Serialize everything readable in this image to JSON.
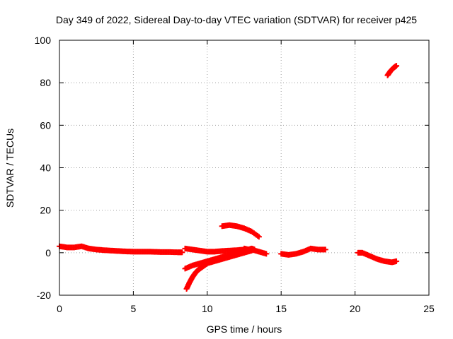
{
  "chart_data": {
    "type": "scatter",
    "title": "Day 349 of 2022, Sidereal Day-to-day VTEC variation (SDTVAR) for receiver p425",
    "xlabel": "GPS time / hours",
    "ylabel": "SDTVAR / TECUs",
    "xlim": [
      0,
      25
    ],
    "ylim": [
      -20,
      100
    ],
    "x_ticks": [
      "0",
      "5",
      "10",
      "15",
      "20",
      "25"
    ],
    "y_ticks": [
      "-20",
      "0",
      "20",
      "40",
      "60",
      "80",
      "100"
    ],
    "grid": true,
    "marker": "plus",
    "color": "#ff0000",
    "series": [
      {
        "name": "SDTVAR",
        "segments": [
          {
            "x": [
              0.0,
              0.5,
              1.0,
              1.5,
              2.0,
              2.5,
              3.0,
              3.5,
              4.0,
              4.5,
              5.0,
              5.5,
              6.0,
              6.5,
              7.0,
              7.5,
              8.0,
              8.3
            ],
            "y": [
              3.0,
              2.5,
              2.5,
              3.0,
              2.0,
              1.5,
              1.2,
              1.0,
              0.8,
              0.6,
              0.5,
              0.5,
              0.5,
              0.4,
              0.3,
              0.3,
              0.2,
              0.2
            ]
          },
          {
            "x": [
              8.5,
              9.0,
              9.5,
              10.0,
              10.5,
              11.0,
              11.5,
              12.0,
              12.5,
              13.0,
              13.5,
              14.0
            ],
            "y": [
              2.0,
              1.5,
              1.0,
              0.5,
              0.5,
              0.8,
              1.0,
              1.2,
              1.5,
              1.5,
              0.5,
              -0.5
            ]
          },
          {
            "x": [
              8.5,
              9.0,
              9.5,
              10.0,
              10.5,
              11.0,
              11.5,
              12.0,
              12.5,
              13.0
            ],
            "y": [
              -7.5,
              -6.0,
              -5.0,
              -4.0,
              -3.0,
              -2.0,
              -1.0,
              0.0,
              0.5,
              1.0
            ]
          },
          {
            "x": [
              8.6,
              8.8,
              9.0,
              9.2,
              9.4,
              9.6,
              9.8,
              10.0,
              10.5,
              11.0,
              11.5,
              12.0,
              12.5,
              13.0
            ],
            "y": [
              -17.0,
              -14.0,
              -11.5,
              -9.5,
              -8.0,
              -7.0,
              -6.0,
              -5.0,
              -4.0,
              -3.0,
              -2.0,
              -1.0,
              0.0,
              1.0
            ]
          },
          {
            "x": [
              11.0,
              11.5,
              12.0,
              12.5,
              13.0,
              13.5
            ],
            "y": [
              12.5,
              13.0,
              12.5,
              11.5,
              10.0,
              7.5
            ]
          },
          {
            "x": [
              12.5,
              12.8,
              13.0,
              13.2
            ],
            "y": [
              2.0,
              1.5,
              2.0,
              1.5
            ]
          },
          {
            "x": [
              15.0,
              15.5,
              16.0,
              16.5,
              17.0,
              17.5,
              18.0
            ],
            "y": [
              -0.5,
              -1.0,
              -0.5,
              0.5,
              2.0,
              1.5,
              1.5
            ]
          },
          {
            "x": [
              20.2,
              20.5,
              21.0,
              21.5,
              22.0,
              22.5,
              22.8
            ],
            "y": [
              0.0,
              0.0,
              -1.5,
              -3.0,
              -4.0,
              -4.5,
              -4.0
            ]
          },
          {
            "x": [
              22.2,
              22.4,
              22.6,
              22.8
            ],
            "y": [
              83.5,
              85.5,
              87.0,
              88.0
            ]
          }
        ]
      }
    ]
  }
}
